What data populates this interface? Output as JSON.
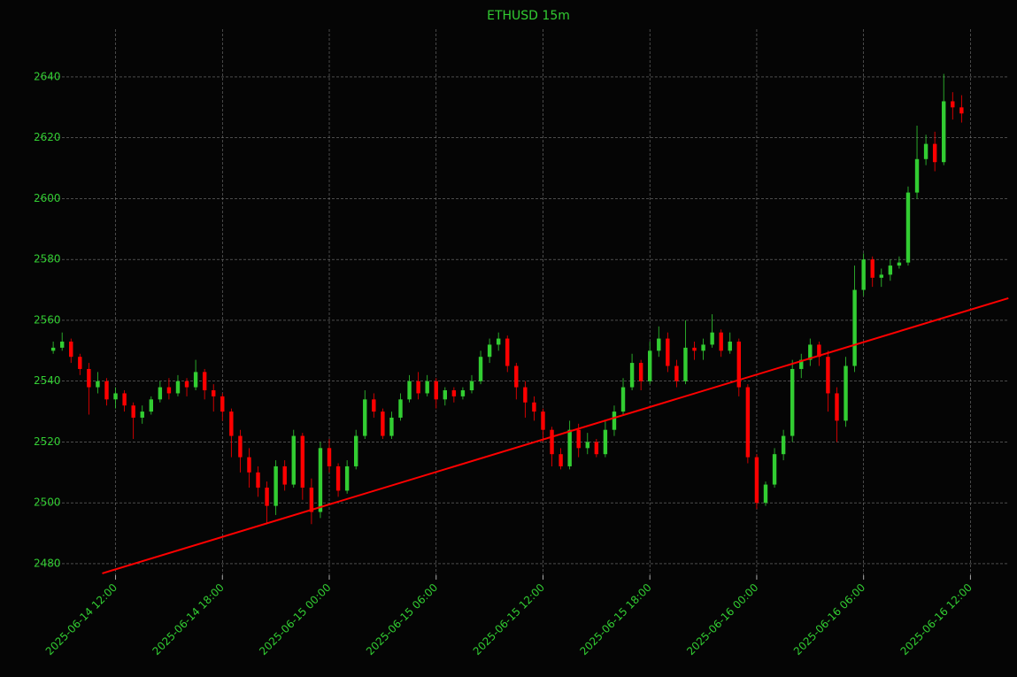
{
  "chart_data": {
    "type": "candlestick",
    "title": "ETHUSD 15m",
    "up_color": "#32cd32",
    "down_color": "#ff0000",
    "text_color": "#32cd32",
    "grid": true,
    "xlim": [
      "2025-06-14 07:30",
      "2025-06-16 14:10"
    ],
    "ylim": [
      2476.2,
      2655.7
    ],
    "yticks": [
      2480,
      2500,
      2520,
      2540,
      2560,
      2580,
      2600,
      2620,
      2640
    ],
    "xticks": [
      "2025-06-14 12:00",
      "2025-06-14 18:00",
      "2025-06-15 00:00",
      "2025-06-15 06:00",
      "2025-06-15 12:00",
      "2025-06-15 18:00",
      "2025-06-16 00:00",
      "2025-06-16 06:00",
      "2025-06-16 12:00"
    ],
    "x": [
      "2025-06-14 08:30",
      "2025-06-14 09:00",
      "2025-06-14 09:30",
      "2025-06-14 10:00",
      "2025-06-14 10:30",
      "2025-06-14 11:00",
      "2025-06-14 11:30",
      "2025-06-14 12:00",
      "2025-06-14 12:30",
      "2025-06-14 13:00",
      "2025-06-14 13:30",
      "2025-06-14 14:00",
      "2025-06-14 14:30",
      "2025-06-14 15:00",
      "2025-06-14 15:30",
      "2025-06-14 16:00",
      "2025-06-14 16:30",
      "2025-06-14 17:00",
      "2025-06-14 17:30",
      "2025-06-14 18:00",
      "2025-06-14 18:30",
      "2025-06-14 19:00",
      "2025-06-14 19:30",
      "2025-06-14 20:00",
      "2025-06-14 20:30",
      "2025-06-14 21:00",
      "2025-06-14 21:30",
      "2025-06-14 22:00",
      "2025-06-14 22:30",
      "2025-06-14 23:00",
      "2025-06-14 23:30",
      "2025-06-15 00:00",
      "2025-06-15 00:30",
      "2025-06-15 01:00",
      "2025-06-15 01:30",
      "2025-06-15 02:00",
      "2025-06-15 02:30",
      "2025-06-15 03:00",
      "2025-06-15 03:30",
      "2025-06-15 04:00",
      "2025-06-15 04:30",
      "2025-06-15 05:00",
      "2025-06-15 05:30",
      "2025-06-15 06:00",
      "2025-06-15 06:30",
      "2025-06-15 07:00",
      "2025-06-15 07:30",
      "2025-06-15 08:00",
      "2025-06-15 08:30",
      "2025-06-15 09:00",
      "2025-06-15 09:30",
      "2025-06-15 10:00",
      "2025-06-15 10:30",
      "2025-06-15 11:00",
      "2025-06-15 11:30",
      "2025-06-15 12:00",
      "2025-06-15 12:30",
      "2025-06-15 13:00",
      "2025-06-15 13:30",
      "2025-06-15 14:00",
      "2025-06-15 14:30",
      "2025-06-15 15:00",
      "2025-06-15 15:30",
      "2025-06-15 16:00",
      "2025-06-15 16:30",
      "2025-06-15 17:00",
      "2025-06-15 17:30",
      "2025-06-15 18:00",
      "2025-06-15 18:30",
      "2025-06-15 19:00",
      "2025-06-15 19:30",
      "2025-06-15 20:00",
      "2025-06-15 20:30",
      "2025-06-15 21:00",
      "2025-06-15 21:30",
      "2025-06-15 22:00",
      "2025-06-15 22:30",
      "2025-06-15 23:00",
      "2025-06-15 23:30",
      "2025-06-16 00:00",
      "2025-06-16 00:30",
      "2025-06-16 01:00",
      "2025-06-16 01:30",
      "2025-06-16 02:00",
      "2025-06-16 02:30",
      "2025-06-16 03:00",
      "2025-06-16 03:30",
      "2025-06-16 04:00",
      "2025-06-16 04:30",
      "2025-06-16 05:00",
      "2025-06-16 05:30",
      "2025-06-16 06:00",
      "2025-06-16 06:30",
      "2025-06-16 07:00",
      "2025-06-16 07:30",
      "2025-06-16 08:00",
      "2025-06-16 08:30",
      "2025-06-16 09:00",
      "2025-06-16 09:30",
      "2025-06-16 10:00",
      "2025-06-16 10:30",
      "2025-06-16 11:00",
      "2025-06-16 11:30"
    ],
    "open": [
      2550,
      2551,
      2553,
      2548,
      2544,
      2538,
      2540,
      2534,
      2536,
      2532,
      2528,
      2530,
      2534,
      2538,
      2536,
      2540,
      2538,
      2543,
      2537,
      2535,
      2530,
      2522,
      2515,
      2510,
      2505,
      2499,
      2512,
      2506,
      2522,
      2505,
      2497,
      2518,
      2512,
      2504,
      2512,
      2522,
      2534,
      2530,
      2522,
      2528,
      2534,
      2540,
      2536,
      2540,
      2534,
      2537,
      2535,
      2537,
      2540,
      2548,
      2552,
      2554,
      2545,
      2538,
      2533,
      2530,
      2524,
      2516,
      2512,
      2524,
      2518,
      2520,
      2516,
      2524,
      2530,
      2538,
      2546,
      2540,
      2550,
      2554,
      2545,
      2540,
      2551,
      2550,
      2552,
      2556,
      2550,
      2553,
      2538,
      2515,
      2500,
      2506,
      2516,
      2522,
      2544,
      2547,
      2552,
      2548,
      2536,
      2527,
      2545,
      2570,
      2580,
      2574,
      2575,
      2578,
      2579,
      2602,
      2613,
      2618,
      2612,
      2632,
      2630
    ],
    "high": [
      2553,
      2556,
      2554,
      2549,
      2546,
      2543,
      2541,
      2538,
      2537,
      2533,
      2532,
      2535,
      2540,
      2541,
      2542,
      2541,
      2547,
      2544,
      2539,
      2536,
      2531,
      2524,
      2518,
      2512,
      2507,
      2514,
      2514,
      2524,
      2523,
      2508,
      2520,
      2521,
      2513,
      2514,
      2524,
      2537,
      2536,
      2531,
      2530,
      2536,
      2542,
      2543,
      2542,
      2541,
      2538,
      2538,
      2538,
      2542,
      2550,
      2554,
      2556,
      2555,
      2546,
      2540,
      2535,
      2531,
      2525,
      2518,
      2527,
      2526,
      2523,
      2521,
      2527,
      2532,
      2541,
      2549,
      2547,
      2553,
      2558,
      2556,
      2547,
      2560,
      2553,
      2554,
      2562,
      2557,
      2556,
      2554,
      2539,
      2516,
      2507,
      2518,
      2524,
      2547,
      2549,
      2554,
      2553,
      2550,
      2538,
      2548,
      2578,
      2582,
      2581,
      2577,
      2580,
      2581,
      2604,
      2624,
      2621,
      2622,
      2641,
      2635,
      2634
    ],
    "low": [
      2549,
      2550,
      2546,
      2542,
      2529,
      2536,
      2532,
      2531,
      2530,
      2521,
      2526,
      2529,
      2533,
      2534,
      2535,
      2535,
      2537,
      2534,
      2530,
      2527,
      2515,
      2510,
      2505,
      2502,
      2493,
      2496,
      2504,
      2505,
      2501,
      2493,
      2495,
      2510,
      2502,
      2503,
      2511,
      2521,
      2528,
      2521,
      2521,
      2527,
      2533,
      2534,
      2535,
      2531,
      2532,
      2533,
      2534,
      2536,
      2539,
      2546,
      2550,
      2543,
      2534,
      2528,
      2527,
      2520,
      2512,
      2511,
      2511,
      2515,
      2516,
      2515,
      2515,
      2522,
      2529,
      2537,
      2537,
      2539,
      2548,
      2543,
      2538,
      2539,
      2547,
      2547,
      2551,
      2548,
      2549,
      2535,
      2513,
      2498,
      2499,
      2505,
      2514,
      2520,
      2541,
      2545,
      2545,
      2530,
      2520,
      2525,
      2543,
      2568,
      2571,
      2571,
      2573,
      2577,
      2578,
      2600,
      2611,
      2609,
      2611,
      2626,
      2625
    ],
    "close": [
      2551,
      2553,
      2548,
      2544,
      2538,
      2540,
      2534,
      2536,
      2532,
      2528,
      2530,
      2534,
      2538,
      2536,
      2540,
      2538,
      2543,
      2537,
      2535,
      2530,
      2522,
      2515,
      2510,
      2505,
      2499,
      2512,
      2506,
      2522,
      2505,
      2497,
      2518,
      2512,
      2504,
      2512,
      2522,
      2534,
      2530,
      2522,
      2528,
      2534,
      2540,
      2536,
      2540,
      2534,
      2537,
      2535,
      2537,
      2540,
      2548,
      2552,
      2554,
      2545,
      2538,
      2533,
      2530,
      2524,
      2516,
      2512,
      2524,
      2518,
      2520,
      2516,
      2524,
      2530,
      2538,
      2546,
      2540,
      2550,
      2554,
      2545,
      2540,
      2551,
      2550,
      2552,
      2556,
      2550,
      2553,
      2538,
      2515,
      2500,
      2506,
      2516,
      2522,
      2544,
      2547,
      2552,
      2548,
      2536,
      2527,
      2545,
      2570,
      2580,
      2574,
      2575,
      2578,
      2579,
      2602,
      2613,
      2618,
      2612,
      2632,
      2630,
      2628
    ],
    "trendline": {
      "color": "#ff0000",
      "x": [
        "2025-06-14 11:15",
        "2025-06-16 14:08"
      ],
      "values": [
        2476.8,
        2567.3
      ]
    }
  }
}
